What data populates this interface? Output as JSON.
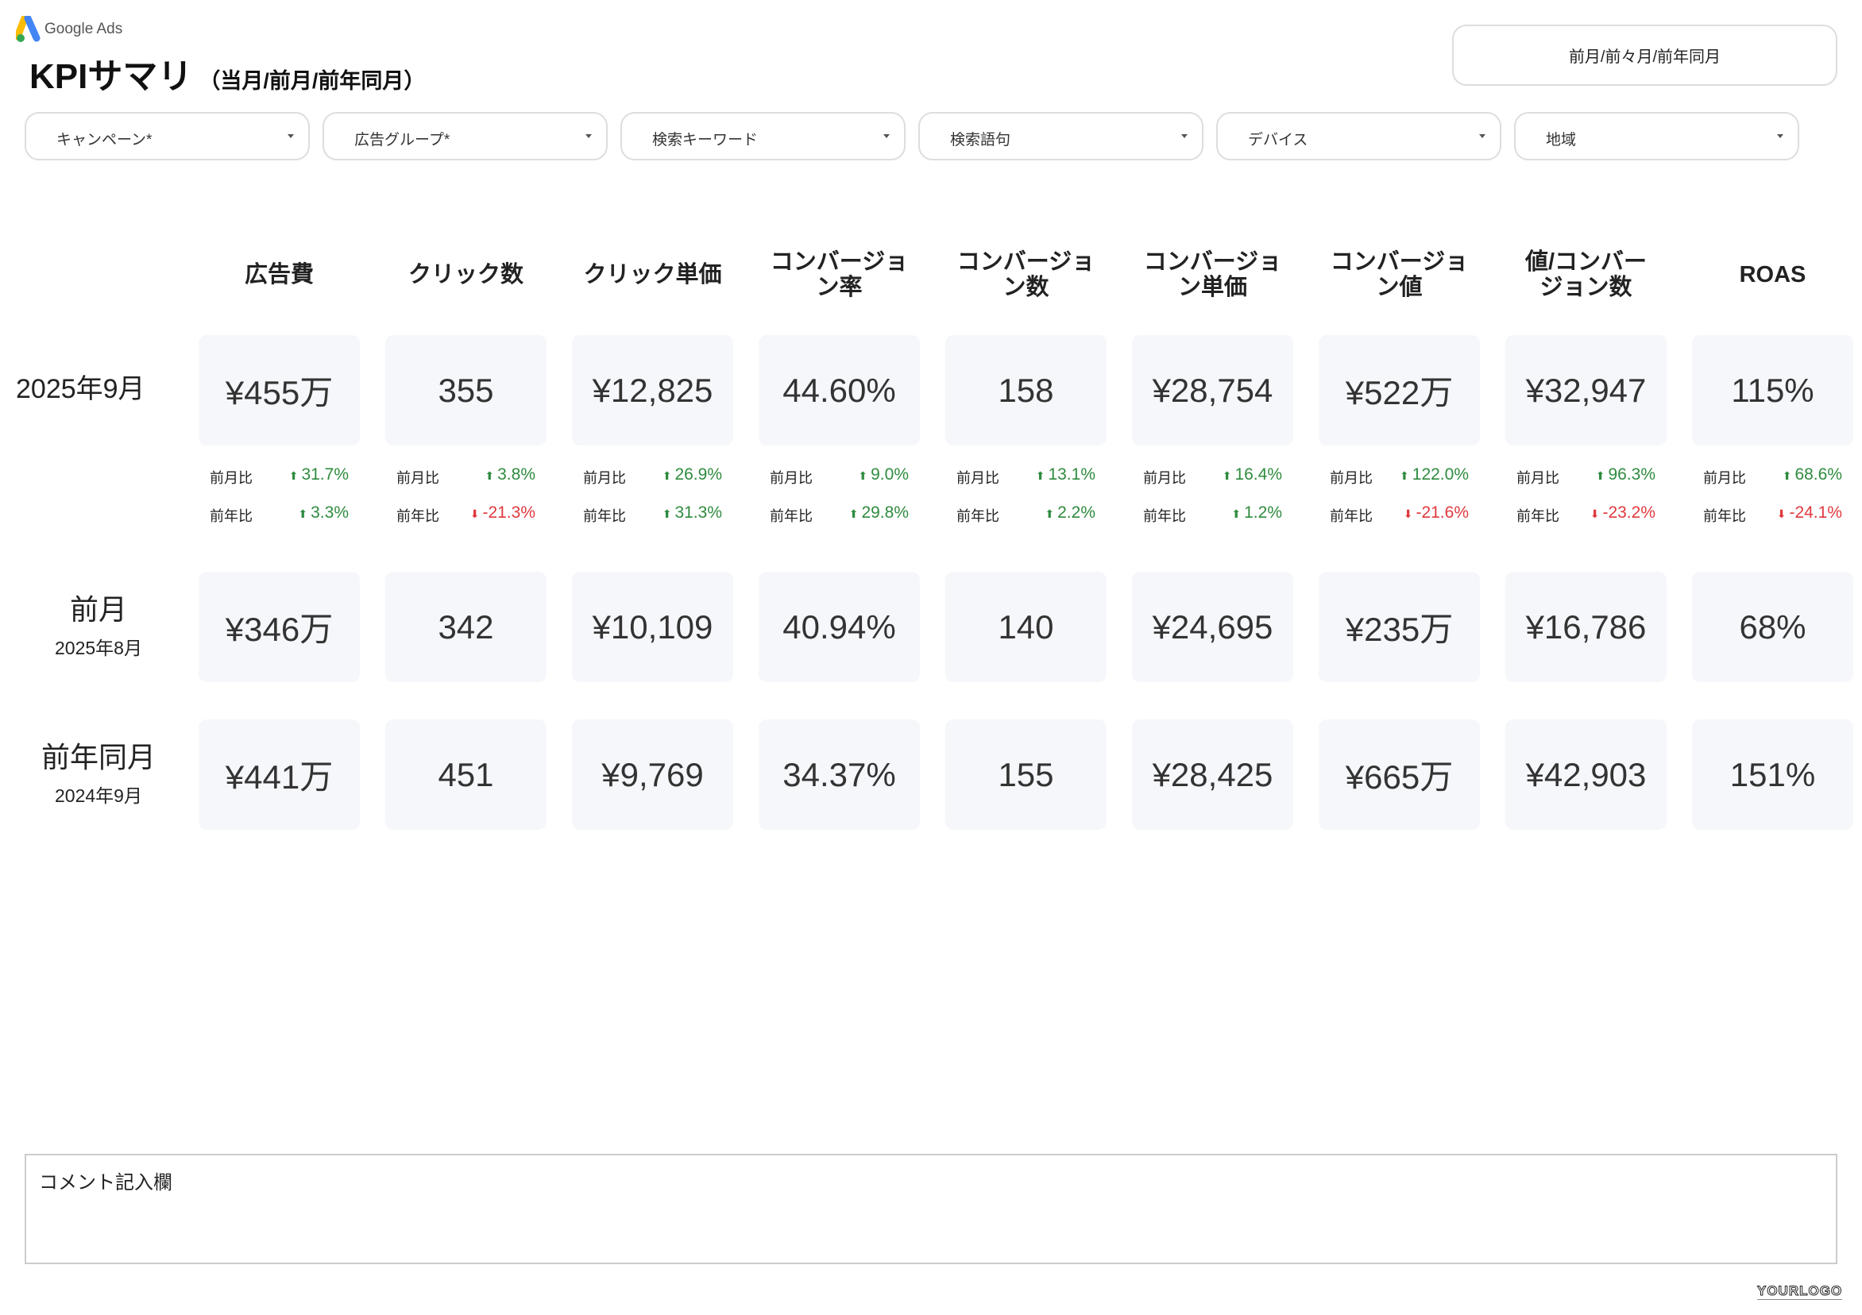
{
  "header": {
    "logo_text": "Google Ads",
    "title": "KPIサマリ",
    "subtitle": "（当月/前月/前年同月）",
    "period_button": "前月/前々月/前年同月"
  },
  "filters": [
    "キャンペーン*",
    "広告グループ*",
    "検索キーワード",
    "検索語句",
    "デバイス",
    "地域"
  ],
  "columns": [
    "広告費",
    "クリック数",
    "クリック単価",
    "コンバージョン率",
    "コンバージョン数",
    "コンバージョン単価",
    "コンバージョン値",
    "値/コンバージョン数",
    "ROAS"
  ],
  "column_display": [
    "広告費",
    "クリック数",
    "クリック単価",
    "コンバージョ\nン率",
    "コンバージョ\nン数",
    "コンバージョ\nン単価",
    "コンバージョ\nン値",
    "値/コンバー\nジョン数",
    "ROAS"
  ],
  "rows": [
    {
      "label": "2025年9月",
      "sublabel": "",
      "values": [
        "¥455万",
        "355",
        "¥12,825",
        "44.60%",
        "158",
        "¥28,754",
        "¥522万",
        "¥32,947",
        "115%"
      ]
    },
    {
      "label": "前月",
      "sublabel": "2025年8月",
      "values": [
        "¥346万",
        "342",
        "¥10,109",
        "40.94%",
        "140",
        "¥24,695",
        "¥235万",
        "¥16,786",
        "68%"
      ]
    },
    {
      "label": "前年同月",
      "sublabel": "2024年9月",
      "values": [
        "¥441万",
        "451",
        "¥9,769",
        "34.37%",
        "155",
        "¥28,425",
        "¥665万",
        "¥42,903",
        "151%"
      ]
    }
  ],
  "comparisons": {
    "mom_label": "前月比",
    "yoy_label": "前年比",
    "mom": [
      "31.7%",
      "3.8%",
      "26.9%",
      "9.0%",
      "13.1%",
      "16.4%",
      "122.0%",
      "96.3%",
      "68.6%"
    ],
    "mom_dir": [
      "up",
      "up",
      "up",
      "up",
      "up",
      "up",
      "up",
      "up",
      "up"
    ],
    "yoy": [
      "3.3%",
      "-21.3%",
      "31.3%",
      "29.8%",
      "2.2%",
      "1.2%",
      "-21.6%",
      "-23.2%",
      "-24.1%"
    ],
    "yoy_dir": [
      "up",
      "down",
      "up",
      "up",
      "up",
      "up",
      "down",
      "down",
      "down"
    ]
  },
  "colors": {
    "up": "#2e8b3e",
    "down": "#e0393e",
    "card_bg": "#f6f7fb"
  },
  "comment": {
    "label": "コメント記入欄"
  },
  "footer": {
    "logo_text": "YOURLOGO"
  }
}
